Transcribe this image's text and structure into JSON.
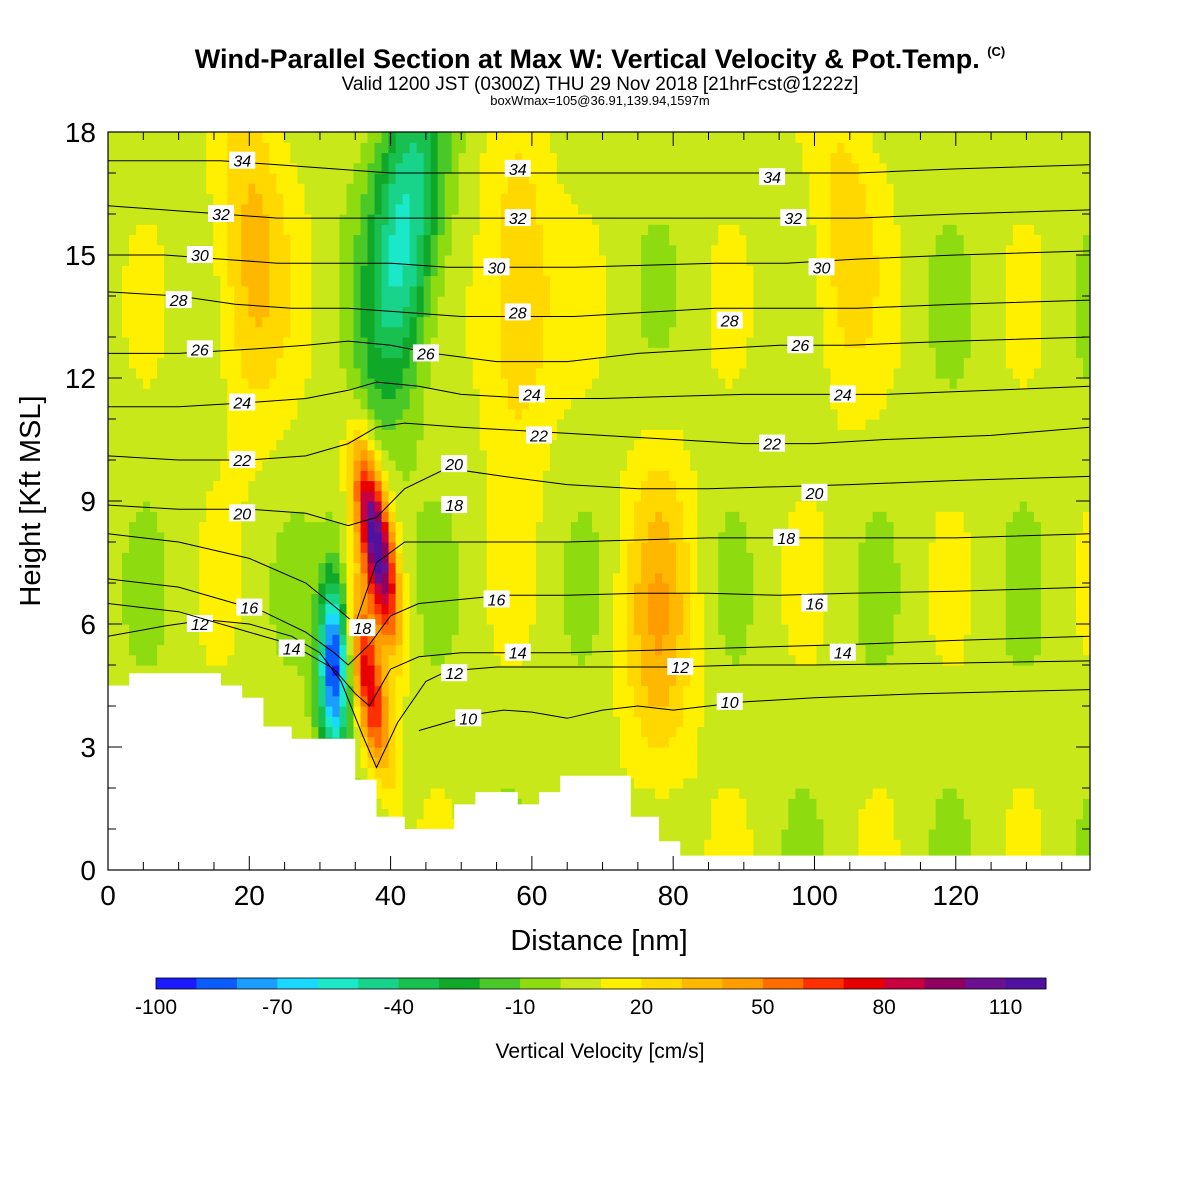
{
  "header": {
    "title": "Wind-Parallel Section at Max W: Vertical Velocity & Pot.Temp.",
    "copyright": "(C)",
    "valid_line": "Valid 1200 JST (0300Z) THU 29 Nov 2018 [21hrFcst@1222z]",
    "box_line": "boxWmax=105@36.91,139.94,1597m"
  },
  "chart_data": {
    "type": "heatmap",
    "xlabel": "Distance [nm]",
    "ylabel": "Height [Kft MSL]",
    "xlim": [
      0,
      139
    ],
    "ylim": [
      0,
      18
    ],
    "x_ticks": [
      0,
      20,
      40,
      60,
      80,
      100,
      120
    ],
    "y_ticks": [
      0,
      3,
      6,
      9,
      12,
      15,
      18
    ],
    "colorbar": {
      "label": "Vertical Velocity [cm/s]",
      "range": [
        -100,
        120
      ],
      "step": 10,
      "tick_labels": [
        -100,
        -70,
        -40,
        -10,
        20,
        50,
        80,
        110
      ],
      "colors": [
        "#1a1aff",
        "#0a5cff",
        "#1a9dff",
        "#1ad8ff",
        "#1ae8c8",
        "#18d48a",
        "#18c050",
        "#10a828",
        "#4ac828",
        "#8edc10",
        "#c8e81a",
        "#fff000",
        "#ffd800",
        "#ffb800",
        "#ff9c00",
        "#ff6c00",
        "#ff3000",
        "#e80000",
        "#c80040",
        "#900060",
        "#6a1090",
        "#5010a0"
      ]
    },
    "vertical_velocity_features": [
      {
        "x": 38,
        "y": 8,
        "w_peak": 110
      },
      {
        "x": 37,
        "y": 4.5,
        "w_peak": 70
      },
      {
        "x": 42,
        "y": 15.5,
        "w_peak": -60
      },
      {
        "x": 32,
        "y": 5,
        "w_peak": -100
      },
      {
        "x": 78,
        "y": 6,
        "w_peak": 30
      },
      {
        "x": 104,
        "y": 15.5,
        "w_peak": 20
      },
      {
        "x": 58,
        "y": 14,
        "w_peak": 30
      },
      {
        "x": 20,
        "y": 15,
        "w_peak": 30
      }
    ],
    "terrain_profile": {
      "x": [
        0,
        3,
        3,
        16,
        16,
        19,
        19,
        22,
        22,
        26,
        26,
        29,
        29,
        35,
        35,
        38,
        38,
        42,
        42,
        49,
        49,
        52,
        52,
        58,
        58,
        61,
        61,
        64,
        64,
        74,
        74,
        78,
        78,
        81,
        81,
        139
      ],
      "height": [
        4.5,
        4.5,
        4.8,
        4.8,
        4.5,
        4.5,
        4.2,
        4.2,
        3.5,
        3.5,
        3.2,
        3.2,
        3.2,
        3.2,
        2.2,
        2.2,
        1.3,
        1.3,
        1.0,
        1.0,
        1.6,
        1.6,
        1.9,
        1.9,
        1.6,
        1.6,
        1.9,
        1.9,
        2.3,
        2.3,
        1.3,
        1.3,
        0.7,
        0.7,
        0.35,
        0.35
      ]
    },
    "theta_contours": [
      {
        "label": "10",
        "points": [
          [
            44,
            3.4
          ],
          [
            48,
            3.6
          ],
          [
            52,
            3.8
          ],
          [
            56,
            3.9
          ],
          [
            60,
            3.85
          ],
          [
            65,
            3.7
          ],
          [
            70,
            3.9
          ],
          [
            75,
            4.0
          ],
          [
            80,
            3.9
          ],
          [
            85,
            4.0
          ],
          [
            90,
            4.1
          ],
          [
            100,
            4.2
          ],
          [
            115,
            4.3
          ],
          [
            139,
            4.4
          ]
        ],
        "labels": [
          [
            51,
            3.7
          ],
          [
            88,
            4.1
          ]
        ]
      },
      {
        "label": "12",
        "points": [
          [
            0,
            5.7
          ],
          [
            8,
            5.95
          ],
          [
            14,
            6.1
          ],
          [
            20,
            6.0
          ],
          [
            26,
            5.7
          ],
          [
            30,
            5.3
          ],
          [
            33,
            4.6
          ],
          [
            36,
            3.3
          ],
          [
            38,
            2.5
          ],
          [
            41,
            3.6
          ],
          [
            45,
            4.6
          ],
          [
            48,
            4.85
          ],
          [
            55,
            4.95
          ],
          [
            65,
            4.95
          ],
          [
            75,
            4.95
          ],
          [
            80,
            4.95
          ],
          [
            90,
            5.0
          ],
          [
            100,
            5.0
          ],
          [
            120,
            5.05
          ],
          [
            139,
            5.1
          ]
        ],
        "labels": [
          [
            13,
            6.0
          ],
          [
            49,
            4.8
          ],
          [
            81,
            4.95
          ]
        ]
      },
      {
        "label": "14",
        "points": [
          [
            0,
            6.5
          ],
          [
            10,
            6.3
          ],
          [
            18,
            5.9
          ],
          [
            24,
            5.6
          ],
          [
            28,
            5.3
          ],
          [
            32,
            4.9
          ],
          [
            35,
            4.3
          ],
          [
            37,
            4.0
          ],
          [
            40,
            4.9
          ],
          [
            44,
            5.2
          ],
          [
            50,
            5.3
          ],
          [
            56,
            5.3
          ],
          [
            65,
            5.3
          ],
          [
            75,
            5.35
          ],
          [
            85,
            5.4
          ],
          [
            95,
            5.45
          ],
          [
            105,
            5.5
          ],
          [
            120,
            5.6
          ],
          [
            139,
            5.7
          ]
        ],
        "labels": [
          [
            26,
            5.4
          ],
          [
            58,
            5.3
          ],
          [
            104,
            5.3
          ]
        ]
      },
      {
        "label": "16",
        "points": [
          [
            0,
            7.1
          ],
          [
            10,
            6.9
          ],
          [
            16,
            6.6
          ],
          [
            22,
            6.3
          ],
          [
            28,
            5.8
          ],
          [
            32,
            5.3
          ],
          [
            34,
            5.0
          ],
          [
            37,
            5.5
          ],
          [
            40,
            6.2
          ],
          [
            44,
            6.5
          ],
          [
            50,
            6.6
          ],
          [
            56,
            6.7
          ],
          [
            65,
            6.7
          ],
          [
            75,
            6.75
          ],
          [
            85,
            6.75
          ],
          [
            95,
            6.7
          ],
          [
            105,
            6.75
          ],
          [
            120,
            6.8
          ],
          [
            139,
            6.9
          ]
        ],
        "labels": [
          [
            20,
            6.4
          ],
          [
            55,
            6.6
          ],
          [
            100,
            6.5
          ]
        ]
      },
      {
        "label": "18",
        "points": [
          [
            0,
            8.2
          ],
          [
            10,
            8.0
          ],
          [
            20,
            7.6
          ],
          [
            28,
            7.0
          ],
          [
            33,
            6.3
          ],
          [
            35,
            6.0
          ],
          [
            38,
            7.5
          ],
          [
            42,
            8.0
          ],
          [
            48,
            8.0
          ],
          [
            56,
            8.0
          ],
          [
            65,
            8.0
          ],
          [
            75,
            8.05
          ],
          [
            85,
            8.1
          ],
          [
            95,
            8.1
          ],
          [
            105,
            8.1
          ],
          [
            120,
            8.1
          ],
          [
            139,
            8.2
          ]
        ],
        "labels": [
          [
            36,
            5.9
          ],
          [
            49,
            8.9
          ],
          [
            96,
            8.1
          ]
        ]
      },
      {
        "label": "20",
        "points": [
          [
            0,
            8.9
          ],
          [
            10,
            8.8
          ],
          [
            20,
            8.8
          ],
          [
            28,
            8.7
          ],
          [
            34,
            8.4
          ],
          [
            38,
            8.6
          ],
          [
            42,
            9.3
          ],
          [
            48,
            9.8
          ],
          [
            56,
            9.6
          ],
          [
            65,
            9.4
          ],
          [
            75,
            9.3
          ],
          [
            85,
            9.3
          ],
          [
            95,
            9.35
          ],
          [
            105,
            9.4
          ],
          [
            120,
            9.5
          ],
          [
            139,
            9.6
          ]
        ],
        "labels": [
          [
            19,
            8.7
          ],
          [
            49,
            9.9
          ],
          [
            100,
            9.2
          ]
        ]
      },
      {
        "label": "22",
        "points": [
          [
            0,
            10.1
          ],
          [
            10,
            10.0
          ],
          [
            20,
            10.0
          ],
          [
            28,
            10.1
          ],
          [
            34,
            10.4
          ],
          [
            38,
            10.8
          ],
          [
            42,
            10.9
          ],
          [
            50,
            10.8
          ],
          [
            60,
            10.7
          ],
          [
            70,
            10.6
          ],
          [
            80,
            10.5
          ],
          [
            90,
            10.4
          ],
          [
            100,
            10.4
          ],
          [
            110,
            10.5
          ],
          [
            125,
            10.6
          ],
          [
            139,
            10.8
          ]
        ],
        "labels": [
          [
            19,
            10.0
          ],
          [
            61,
            10.6
          ],
          [
            94,
            10.4
          ]
        ]
      },
      {
        "label": "24",
        "points": [
          [
            0,
            11.3
          ],
          [
            10,
            11.3
          ],
          [
            20,
            11.4
          ],
          [
            28,
            11.5
          ],
          [
            34,
            11.7
          ],
          [
            38,
            11.9
          ],
          [
            44,
            11.8
          ],
          [
            50,
            11.6
          ],
          [
            60,
            11.5
          ],
          [
            70,
            11.5
          ],
          [
            80,
            11.55
          ],
          [
            90,
            11.6
          ],
          [
            100,
            11.6
          ],
          [
            110,
            11.6
          ],
          [
            125,
            11.7
          ],
          [
            139,
            11.8
          ]
        ],
        "labels": [
          [
            19,
            11.4
          ],
          [
            60,
            11.6
          ],
          [
            104,
            11.6
          ]
        ]
      },
      {
        "label": "26",
        "points": [
          [
            0,
            12.6
          ],
          [
            10,
            12.6
          ],
          [
            20,
            12.7
          ],
          [
            28,
            12.8
          ],
          [
            34,
            12.9
          ],
          [
            40,
            12.8
          ],
          [
            46,
            12.6
          ],
          [
            55,
            12.4
          ],
          [
            65,
            12.4
          ],
          [
            75,
            12.6
          ],
          [
            85,
            12.7
          ],
          [
            95,
            12.8
          ],
          [
            105,
            12.8
          ],
          [
            120,
            12.9
          ],
          [
            139,
            13.0
          ]
        ],
        "labels": [
          [
            13,
            12.7
          ],
          [
            45,
            12.6
          ],
          [
            98,
            12.8
          ]
        ]
      },
      {
        "label": "28",
        "points": [
          [
            0,
            14.1
          ],
          [
            10,
            14.0
          ],
          [
            18,
            13.8
          ],
          [
            26,
            13.7
          ],
          [
            34,
            13.7
          ],
          [
            42,
            13.6
          ],
          [
            50,
            13.5
          ],
          [
            58,
            13.5
          ],
          [
            66,
            13.5
          ],
          [
            76,
            13.6
          ],
          [
            86,
            13.7
          ],
          [
            96,
            13.7
          ],
          [
            106,
            13.7
          ],
          [
            120,
            13.8
          ],
          [
            139,
            13.9
          ]
        ],
        "labels": [
          [
            10,
            13.9
          ],
          [
            58,
            13.6
          ],
          [
            88,
            13.4
          ]
        ]
      },
      {
        "label": "30",
        "points": [
          [
            0,
            15.0
          ],
          [
            8,
            15.0
          ],
          [
            16,
            14.9
          ],
          [
            24,
            14.8
          ],
          [
            32,
            14.8
          ],
          [
            40,
            14.8
          ],
          [
            48,
            14.7
          ],
          [
            56,
            14.7
          ],
          [
            66,
            14.7
          ],
          [
            76,
            14.75
          ],
          [
            86,
            14.8
          ],
          [
            96,
            14.8
          ],
          [
            106,
            14.9
          ],
          [
            120,
            15.0
          ],
          [
            139,
            15.1
          ]
        ],
        "labels": [
          [
            13,
            15.0
          ],
          [
            55,
            14.7
          ],
          [
            101,
            14.7
          ]
        ]
      },
      {
        "label": "32",
        "points": [
          [
            0,
            16.2
          ],
          [
            8,
            16.1
          ],
          [
            16,
            16.0
          ],
          [
            24,
            15.9
          ],
          [
            32,
            15.9
          ],
          [
            40,
            15.9
          ],
          [
            48,
            15.9
          ],
          [
            56,
            15.9
          ],
          [
            66,
            15.9
          ],
          [
            76,
            15.9
          ],
          [
            86,
            15.9
          ],
          [
            96,
            15.9
          ],
          [
            106,
            15.9
          ],
          [
            120,
            16.0
          ],
          [
            139,
            16.1
          ]
        ],
        "labels": [
          [
            16,
            16.0
          ],
          [
            58,
            15.9
          ],
          [
            97,
            15.9
          ]
        ]
      },
      {
        "label": "34",
        "points": [
          [
            0,
            17.3
          ],
          [
            8,
            17.3
          ],
          [
            16,
            17.3
          ],
          [
            24,
            17.2
          ],
          [
            32,
            17.1
          ],
          [
            40,
            17.0
          ],
          [
            48,
            17.0
          ],
          [
            56,
            17.0
          ],
          [
            66,
            17.0
          ],
          [
            76,
            17.0
          ],
          [
            86,
            17.0
          ],
          [
            96,
            17.0
          ],
          [
            106,
            17.0
          ],
          [
            120,
            17.1
          ],
          [
            139,
            17.2
          ]
        ],
        "labels": [
          [
            19,
            17.3
          ],
          [
            58,
            17.1
          ],
          [
            94,
            16.9
          ]
        ]
      }
    ]
  }
}
